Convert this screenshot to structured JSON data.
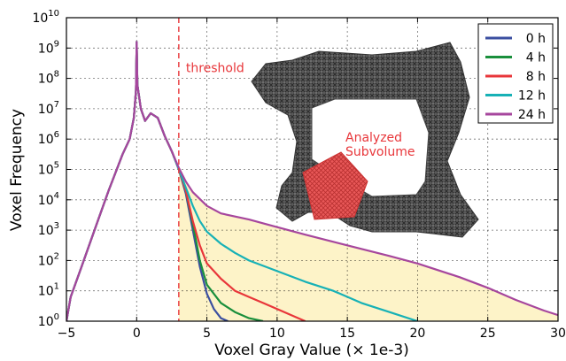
{
  "chart_data": {
    "type": "line",
    "xlabel": "Voxel Gray Value (× 1e-3)",
    "ylabel": "Voxel Frequency",
    "x_ticks": [
      "−5",
      "0",
      "5",
      "10",
      "15",
      "20",
      "25",
      "30"
    ],
    "y_ticks": [
      {
        "base": "10",
        "exp": "0"
      },
      {
        "base": "10",
        "exp": "1"
      },
      {
        "base": "10",
        "exp": "2"
      },
      {
        "base": "10",
        "exp": "3"
      },
      {
        "base": "10",
        "exp": "4"
      },
      {
        "base": "10",
        "exp": "5"
      },
      {
        "base": "10",
        "exp": "6"
      },
      {
        "base": "10",
        "exp": "7"
      },
      {
        "base": "10",
        "exp": "8"
      },
      {
        "base": "10",
        "exp": "9"
      },
      {
        "base": "10",
        "exp": "10"
      }
    ],
    "xlim": [
      -5,
      30
    ],
    "ylim_log10": [
      0,
      10
    ],
    "yscale": "log",
    "grid": true,
    "legend_position": "top-right",
    "threshold": {
      "x": 3,
      "label": "threshold",
      "color": "#e8363a"
    },
    "shaded_region_color": "#fdf3c8",
    "inset_label": [
      "Analyzed",
      "Subvolume"
    ],
    "series": [
      {
        "name": "0 h",
        "color": "#3b4fa0",
        "points": [
          [
            -5,
            0
          ],
          [
            -4.7,
            0.8
          ],
          [
            -4,
            1.7
          ],
          [
            -3,
            3.0
          ],
          [
            -2,
            4.3
          ],
          [
            -1,
            5.5
          ],
          [
            -0.5,
            6.0
          ],
          [
            -0.2,
            6.7
          ],
          [
            -0.05,
            7.6
          ],
          [
            0,
            9.2
          ],
          [
            0.05,
            7.8
          ],
          [
            0.3,
            7.0
          ],
          [
            0.6,
            6.6
          ],
          [
            1.0,
            6.85
          ],
          [
            1.5,
            6.7
          ],
          [
            2,
            6.1
          ],
          [
            2.5,
            5.6
          ],
          [
            3,
            5.0
          ],
          [
            3.5,
            4.2
          ],
          [
            4,
            3.0
          ],
          [
            4.5,
            1.8
          ],
          [
            5,
            0.9
          ],
          [
            5.5,
            0.4
          ],
          [
            6,
            0.1
          ],
          [
            6.5,
            0
          ]
        ]
      },
      {
        "name": "4 h",
        "color": "#1a8f3c",
        "points": [
          [
            -5,
            0
          ],
          [
            -4.7,
            0.8
          ],
          [
            -4,
            1.7
          ],
          [
            -3,
            3.0
          ],
          [
            -2,
            4.3
          ],
          [
            -1,
            5.5
          ],
          [
            -0.5,
            6.0
          ],
          [
            -0.2,
            6.7
          ],
          [
            -0.05,
            7.6
          ],
          [
            0,
            9.2
          ],
          [
            0.05,
            7.8
          ],
          [
            0.3,
            7.0
          ],
          [
            0.6,
            6.6
          ],
          [
            1.0,
            6.85
          ],
          [
            1.5,
            6.7
          ],
          [
            2,
            6.1
          ],
          [
            2.5,
            5.6
          ],
          [
            3,
            5.0
          ],
          [
            3.5,
            4.3
          ],
          [
            4,
            3.2
          ],
          [
            4.5,
            2.0
          ],
          [
            5,
            1.2
          ],
          [
            6,
            0.6
          ],
          [
            7,
            0.3
          ],
          [
            8,
            0.1
          ],
          [
            9,
            0
          ]
        ]
      },
      {
        "name": "8 h",
        "color": "#e8363a",
        "points": [
          [
            -5,
            0
          ],
          [
            -4.7,
            0.8
          ],
          [
            -4,
            1.7
          ],
          [
            -3,
            3.0
          ],
          [
            -2,
            4.3
          ],
          [
            -1,
            5.5
          ],
          [
            -0.5,
            6.0
          ],
          [
            -0.2,
            6.7
          ],
          [
            -0.05,
            7.6
          ],
          [
            0,
            9.2
          ],
          [
            0.05,
            7.8
          ],
          [
            0.3,
            7.0
          ],
          [
            0.6,
            6.6
          ],
          [
            1.0,
            6.85
          ],
          [
            1.5,
            6.7
          ],
          [
            2,
            6.1
          ],
          [
            2.5,
            5.6
          ],
          [
            3,
            5.0
          ],
          [
            3.5,
            4.3
          ],
          [
            4,
            3.3
          ],
          [
            4.5,
            2.5
          ],
          [
            5,
            1.9
          ],
          [
            6,
            1.4
          ],
          [
            7,
            1.0
          ],
          [
            8,
            0.8
          ],
          [
            9,
            0.6
          ],
          [
            10,
            0.4
          ],
          [
            11,
            0.2
          ],
          [
            12,
            0
          ]
        ]
      },
      {
        "name": "12 h",
        "color": "#17b1b6",
        "points": [
          [
            -5,
            0
          ],
          [
            -4.7,
            0.8
          ],
          [
            -4,
            1.7
          ],
          [
            -3,
            3.0
          ],
          [
            -2,
            4.3
          ],
          [
            -1,
            5.5
          ],
          [
            -0.5,
            6.0
          ],
          [
            -0.2,
            6.7
          ],
          [
            -0.05,
            7.6
          ],
          [
            0,
            9.2
          ],
          [
            0.05,
            7.8
          ],
          [
            0.3,
            7.0
          ],
          [
            0.6,
            6.6
          ],
          [
            1.0,
            6.85
          ],
          [
            1.5,
            6.7
          ],
          [
            2,
            6.1
          ],
          [
            2.5,
            5.6
          ],
          [
            3,
            5.0
          ],
          [
            3.5,
            4.4
          ],
          [
            4,
            3.8
          ],
          [
            4.5,
            3.3
          ],
          [
            5,
            2.95
          ],
          [
            6,
            2.55
          ],
          [
            7,
            2.25
          ],
          [
            8,
            2.0
          ],
          [
            10,
            1.65
          ],
          [
            12,
            1.3
          ],
          [
            14,
            1.0
          ],
          [
            16,
            0.6
          ],
          [
            18,
            0.3
          ],
          [
            20,
            0
          ]
        ]
      },
      {
        "name": "24 h",
        "color": "#a6469d",
        "points": [
          [
            -5,
            0
          ],
          [
            -4.7,
            0.8
          ],
          [
            -4,
            1.7
          ],
          [
            -3,
            3.0
          ],
          [
            -2,
            4.3
          ],
          [
            -1,
            5.5
          ],
          [
            -0.5,
            6.0
          ],
          [
            -0.2,
            6.7
          ],
          [
            -0.05,
            7.6
          ],
          [
            0,
            9.2
          ],
          [
            0.05,
            7.8
          ],
          [
            0.3,
            7.0
          ],
          [
            0.6,
            6.6
          ],
          [
            1.0,
            6.85
          ],
          [
            1.5,
            6.7
          ],
          [
            2,
            6.1
          ],
          [
            2.5,
            5.6
          ],
          [
            3,
            5.05
          ],
          [
            3.5,
            4.6
          ],
          [
            4,
            4.25
          ],
          [
            5,
            3.8
          ],
          [
            6,
            3.55
          ],
          [
            8,
            3.35
          ],
          [
            10,
            3.1
          ],
          [
            12,
            2.85
          ],
          [
            15,
            2.5
          ],
          [
            18,
            2.15
          ],
          [
            20,
            1.9
          ],
          [
            23,
            1.45
          ],
          [
            25,
            1.1
          ],
          [
            27,
            0.7
          ],
          [
            29,
            0.35
          ],
          [
            30,
            0.2
          ]
        ]
      }
    ]
  }
}
